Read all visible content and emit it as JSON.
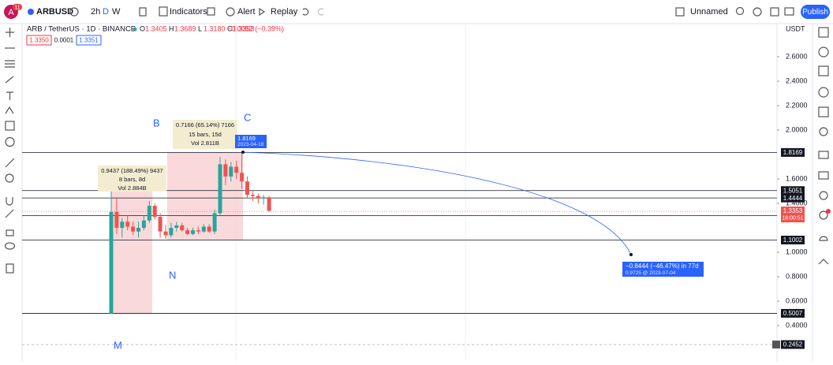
{
  "topbar": {
    "avatar": "A",
    "badge": "11",
    "symbol": "ARBUSD",
    "intervals": [
      "2h",
      "D",
      "W"
    ],
    "buttons": [
      "Indicators",
      "Alert",
      "Replay"
    ],
    "layout_name": "Unnamed",
    "publish": "Publish"
  },
  "legend": {
    "title": "ARB / TetherUS · 1D · BINANCE",
    "ohlc": [
      {
        "key": "O",
        "value": "1.3405"
      },
      {
        "key": "H",
        "value": "1.3689"
      },
      {
        "key": "L",
        "value": "1.3180"
      },
      {
        "key": "C",
        "value": "1.3353"
      }
    ],
    "change": "−0.0052 (−0.39%)",
    "bid": "1.3350",
    "spread": "0.0001",
    "ask": "1.3351"
  },
  "chart_data": {
    "type": "candlestick",
    "currency": "USDT",
    "up_color": "#26a69a",
    "down_color": "#ef5350",
    "open": [
      0.5,
      1.33,
      1.2,
      1.25,
      1.21,
      1.17,
      1.2,
      1.26,
      1.38,
      1.29,
      1.17,
      1.14,
      1.2,
      1.22,
      1.18,
      1.15,
      1.18,
      1.17,
      1.21,
      1.17,
      1.32,
      1.72,
      1.62,
      1.7,
      1.65,
      1.58,
      1.47,
      1.46,
      1.44,
      1.45
    ],
    "high": [
      1.5,
      1.44,
      1.28,
      1.3,
      1.25,
      1.25,
      1.3,
      1.42,
      1.4,
      1.32,
      1.22,
      1.24,
      1.25,
      1.24,
      1.2,
      1.2,
      1.21,
      1.23,
      1.23,
      1.35,
      1.78,
      1.76,
      1.74,
      1.75,
      1.82,
      1.62,
      1.5,
      1.48,
      1.47,
      1.46
    ],
    "low": [
      0.5,
      1.15,
      1.12,
      1.18,
      1.14,
      1.12,
      1.18,
      1.24,
      1.27,
      1.12,
      1.11,
      1.12,
      1.17,
      1.17,
      1.14,
      1.14,
      1.15,
      1.16,
      1.16,
      1.15,
      1.3,
      1.55,
      1.58,
      1.6,
      1.52,
      1.44,
      1.42,
      1.4,
      1.39,
      1.33
    ],
    "close": [
      1.33,
      1.2,
      1.25,
      1.21,
      1.17,
      1.2,
      1.26,
      1.38,
      1.29,
      1.17,
      1.14,
      1.2,
      1.22,
      1.18,
      1.15,
      1.18,
      1.17,
      1.21,
      1.17,
      1.32,
      1.72,
      1.62,
      1.7,
      1.65,
      1.58,
      1.47,
      1.46,
      1.44,
      1.45,
      1.34
    ],
    "ylim": [
      0.11,
      2.871
    ],
    "yticks": [
      {
        "value": 2.6,
        "label": "2.6000"
      },
      {
        "value": 2.4,
        "label": "2.4000"
      },
      {
        "value": 2.2,
        "label": "2.2000"
      },
      {
        "value": 2.0,
        "label": "2.0000"
      },
      {
        "value": 1.6,
        "label": "1.6000"
      },
      {
        "value": 1.4,
        "label": "1.4000"
      },
      {
        "value": 1.0,
        "label": "1.0000"
      },
      {
        "value": 0.8,
        "label": "0.8000"
      },
      {
        "value": 0.6,
        "label": "0.6000"
      },
      {
        "value": 0.4,
        "label": "0.4000"
      }
    ],
    "levels": [
      1.8169,
      1.5051,
      1.4444,
      1.3004,
      1.1002,
      0.5007
    ],
    "last_price": {
      "value": 1.3353,
      "countdown": "18:00:51"
    },
    "crosshair": 0.2452,
    "callouts": [
      [
        "0.9437 (188.49%) 9437",
        "8 bars, 8d",
        "Vol 2.884B"
      ],
      [
        "0.7166 (65.14%) 7166",
        "15 bars, 15d",
        "Vol 2.811B"
      ]
    ],
    "projection": {
      "start": [
        "1.8169",
        "2023-04-18"
      ],
      "end": [
        "−0.8444 (−46.47%) in 77d",
        "0.9725 @ 2023-07-04"
      ]
    },
    "waves": [
      "M",
      "N",
      "B",
      "C"
    ]
  }
}
